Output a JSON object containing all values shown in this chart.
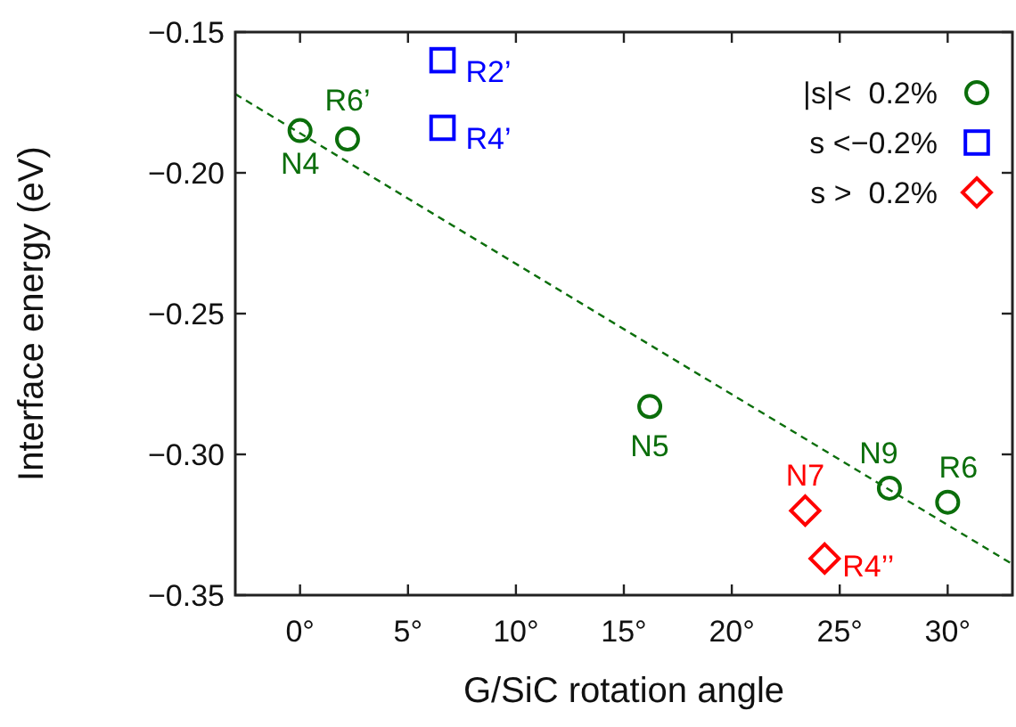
{
  "chart_data": {
    "type": "scatter",
    "xlabel": "G/SiC rotation angle",
    "ylabel": "Interface energy (eV)",
    "xlim": [
      -3,
      33
    ],
    "ylim": [
      -0.35,
      -0.15
    ],
    "xticks": [
      {
        "value": 0,
        "label": "0°"
      },
      {
        "value": 5,
        "label": "5°"
      },
      {
        "value": 10,
        "label": "10°"
      },
      {
        "value": 15,
        "label": "15°"
      },
      {
        "value": 20,
        "label": "20°"
      },
      {
        "value": 25,
        "label": "25°"
      },
      {
        "value": 30,
        "label": "30°"
      }
    ],
    "yticks": [
      {
        "value": -0.35,
        "label": "−0.35"
      },
      {
        "value": -0.3,
        "label": "−0.30"
      },
      {
        "value": -0.25,
        "label": "−0.25"
      },
      {
        "value": -0.2,
        "label": "−0.20"
      },
      {
        "value": -0.15,
        "label": "−0.15"
      }
    ],
    "grid": false,
    "legend": "top right",
    "series": [
      {
        "name": "|s|<  0.2%",
        "color": "#0b6e0b",
        "marker": "circle",
        "x": [
          0,
          2.2,
          16.2,
          27.3,
          30
        ],
        "values": [
          -0.185,
          -0.188,
          -0.283,
          -0.312,
          -0.317
        ]
      },
      {
        "name": "s <−0.2%",
        "color": "#0000ff",
        "marker": "square",
        "x": [
          6.6,
          6.6
        ],
        "values": [
          -0.16,
          -0.184
        ]
      },
      {
        "name": "s >  0.2%",
        "color": "#ff0000",
        "marker": "diamond",
        "x": [
          23.4,
          24.3
        ],
        "values": [
          -0.32,
          -0.337
        ]
      },
      {
        "type": "line",
        "color": "#0b6e0b",
        "line_style": "dashed",
        "marker": "none",
        "x": [
          -3,
          33
        ],
        "values": [
          -0.172,
          -0.339
        ]
      }
    ],
    "annotations": [
      {
        "text": "N4",
        "x": 0,
        "y": -0.185
      },
      {
        "text": "R6’",
        "x": 2.2,
        "y": -0.188
      },
      {
        "text": "N5",
        "x": 16.2,
        "y": -0.283
      },
      {
        "text": "N9",
        "x": 27.3,
        "y": -0.312
      },
      {
        "text": "R6",
        "x": 30,
        "y": -0.317
      },
      {
        "text": "R2’",
        "x": 6.6,
        "y": -0.16
      },
      {
        "text": "R4’",
        "x": 6.6,
        "y": -0.184
      },
      {
        "text": "N7",
        "x": 23.4,
        "y": -0.32
      },
      {
        "text": "R4’’",
        "x": 24.3,
        "y": -0.337
      }
    ]
  }
}
